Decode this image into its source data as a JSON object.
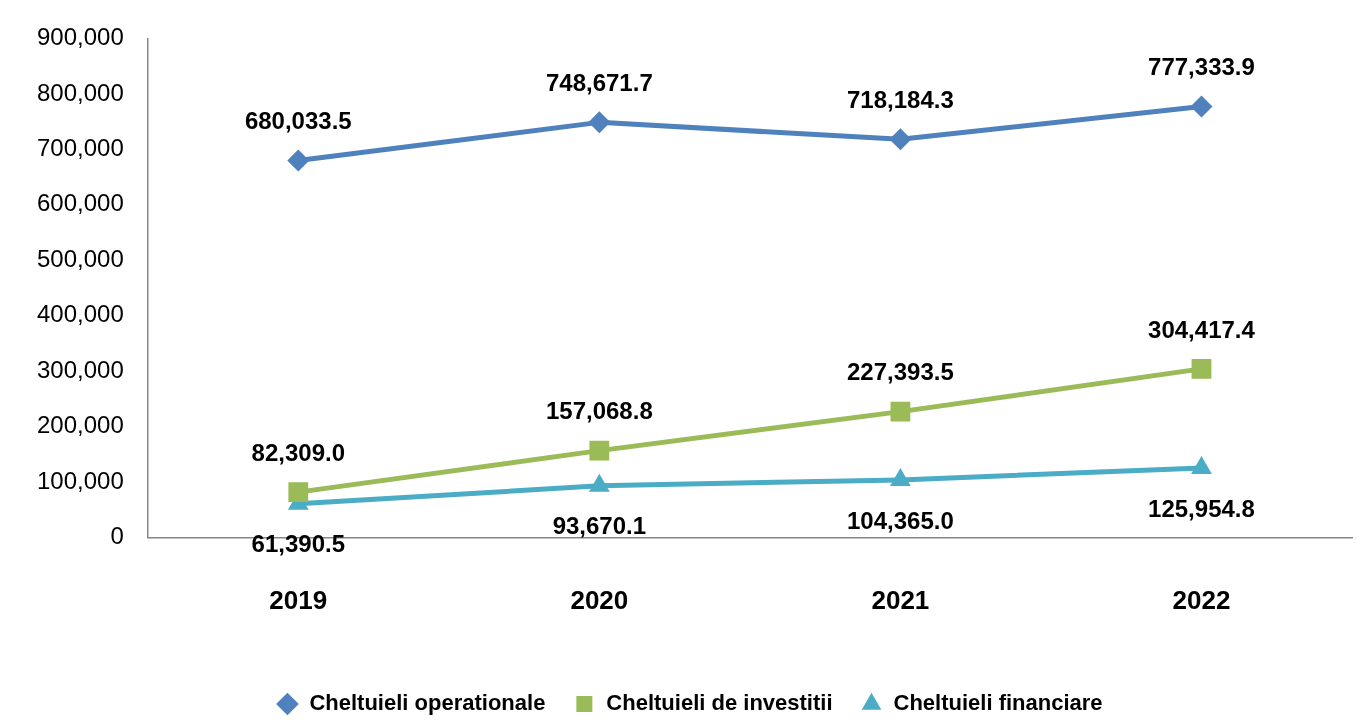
{
  "chart_data": {
    "type": "line",
    "categories": [
      "2019",
      "2020",
      "2021",
      "2022"
    ],
    "series": [
      {
        "name": "Cheltuieli operationale",
        "color": "#4f81bd",
        "marker": "diamond",
        "values": [
          680033.5,
          748671.7,
          718184.3,
          777333.9
        ],
        "value_labels": [
          "680,033.5",
          "748,671.7",
          "718,184.3",
          "777,333.9"
        ]
      },
      {
        "name": "Cheltuieli de investitii",
        "color": "#9bbb59",
        "marker": "square",
        "values": [
          82309.0,
          157068.8,
          227393.5,
          304417.4
        ],
        "value_labels": [
          "82,309.0",
          "157,068.8",
          "227,393.5",
          "304,417.4"
        ]
      },
      {
        "name": "Cheltuieli financiare",
        "color": "#4bacc6",
        "marker": "triangle",
        "values": [
          61390.5,
          93670.1,
          104365.0,
          125954.8
        ],
        "value_labels": [
          "61,390.5",
          "93,670.1",
          "104,365.0",
          "125,954.8"
        ]
      }
    ],
    "ylim": [
      0,
      900000
    ],
    "yticks": [
      0,
      {
        "value": 100000,
        "label": "100,000"
      },
      {
        "value": 200000,
        "label": "200,000"
      },
      {
        "value": 300000,
        "label": "300,000"
      },
      {
        "value": 400000,
        "label": "400,000"
      },
      {
        "value": 500000,
        "label": "500,000"
      },
      {
        "value": 600000,
        "label": "600,000"
      },
      {
        "value": 700000,
        "label": "700,000"
      },
      {
        "value": 800000,
        "label": "800,000"
      },
      {
        "value": 900000,
        "label": "900,000"
      }
    ],
    "grid": false,
    "legend": "bottom",
    "line_style": "solid"
  }
}
